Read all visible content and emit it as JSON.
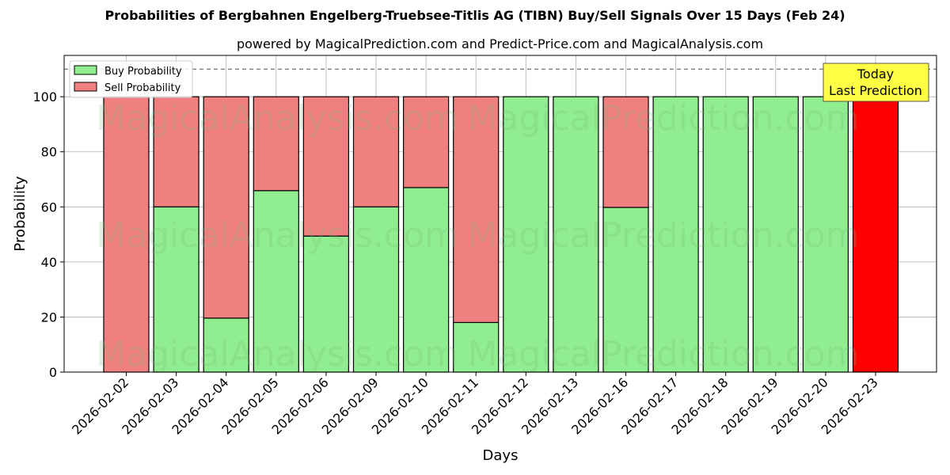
{
  "chart_data": {
    "type": "bar",
    "stacked": true,
    "title": "Probabilities of Bergbahnen Engelberg-Truebsee-Titlis AG (TIBN) Buy/Sell Signals Over 15 Days (Feb 24)",
    "subtitle": "powered by MagicalPrediction.com and Predict-Price.com and MagicalAnalysis.com",
    "xlabel": "Days",
    "ylabel": "Probability",
    "ylim": [
      0,
      115
    ],
    "yticks": [
      0,
      20,
      40,
      60,
      80,
      100
    ],
    "grid": true,
    "legend_position": "upper left",
    "categories": [
      "2026-02-02",
      "2026-02-03",
      "2026-02-04",
      "2026-02-05",
      "2026-02-06",
      "2026-02-09",
      "2026-02-10",
      "2026-02-11",
      "2026-02-12",
      "2026-02-13",
      "2026-02-16",
      "2026-02-17",
      "2026-02-18",
      "2026-02-19",
      "2026-02-20",
      "2026-02-23"
    ],
    "series": [
      {
        "name": "Buy Probability",
        "color": "#90ee90",
        "values": [
          0,
          60,
          19.6,
          65.9,
          49.4,
          60,
          67,
          18,
          100,
          100,
          59.8,
          100,
          100,
          100,
          100,
          0
        ]
      },
      {
        "name": "Sell Probability",
        "color": "#f08080",
        "values": [
          100,
          40,
          80.4,
          34.1,
          50.6,
          40,
          33,
          82,
          0,
          0,
          40.2,
          0,
          0,
          0,
          0,
          100
        ]
      }
    ],
    "highlight": {
      "index": 15,
      "color": "#ff0000"
    },
    "reference_line": {
      "y": 110,
      "style": "dashed"
    },
    "annotation": {
      "text_line1": "Today",
      "text_line2": "Last Prediction",
      "bg": "#ffff44"
    },
    "watermarks": [
      "MagicalAnalysis.com",
      "MagicalPrediction.com"
    ]
  }
}
